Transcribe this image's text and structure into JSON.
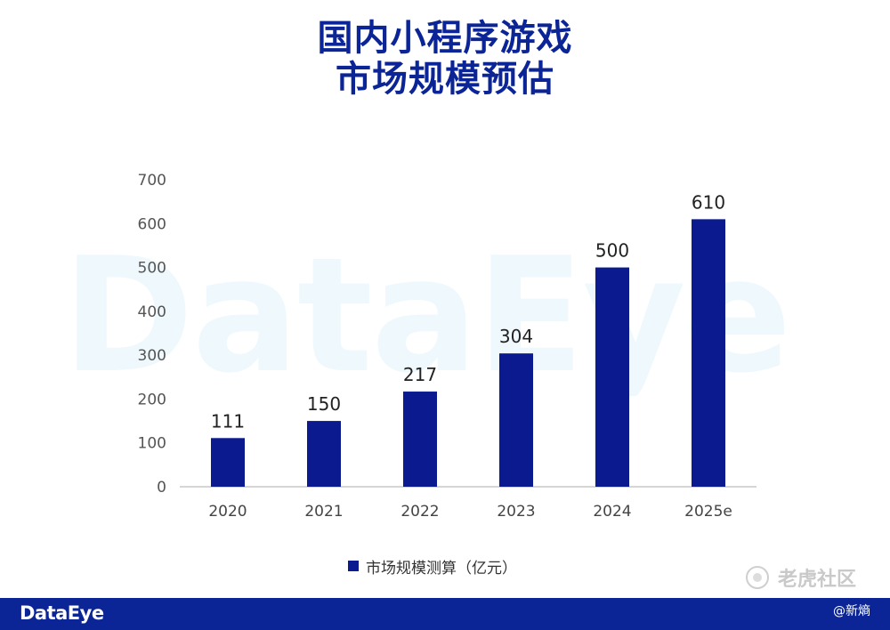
{
  "title": {
    "line1": "国内小程序游戏",
    "line2": "市场规模预估"
  },
  "watermark_text": "DataEye",
  "chart_data": {
    "type": "bar",
    "categories": [
      "2020",
      "2021",
      "2022",
      "2023",
      "2024",
      "2025e"
    ],
    "series": [
      {
        "name": "市场规模测算（亿元）",
        "values": [
          111,
          150,
          217,
          304,
          500,
          610
        ],
        "color": "#0b1a8f"
      }
    ],
    "ylim": [
      0,
      700
    ],
    "yticks": [
      0,
      100,
      200,
      300,
      400,
      500,
      600,
      700
    ],
    "data_labels": [
      "111",
      "150",
      "217",
      "304",
      "500",
      "610"
    ],
    "grid": false,
    "legend_position": "bottom",
    "xlabel": "",
    "ylabel": ""
  },
  "corner_watermark": "老虎社区",
  "footer": {
    "brand": "DataEye",
    "credit": "@新熵",
    "color": "#0b2596"
  }
}
